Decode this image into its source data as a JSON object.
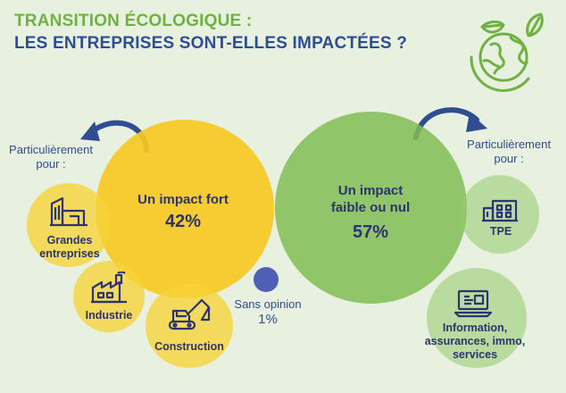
{
  "title": {
    "line1": "TRANSITION ÉCOLOGIQUE :",
    "line2": "LES ENTREPRISES SONT-ELLES IMPACTÉES ?"
  },
  "strong": {
    "label": "Un impact fort",
    "value": "42%",
    "intro": "Particulièrement pour :",
    "items": [
      "Grandes entreprises",
      "Industrie",
      "Construction"
    ]
  },
  "weak": {
    "label_line1": "Un impact",
    "label_line2": "faible ou nul",
    "value": "57%",
    "intro": "Particulièrement pour :",
    "items": [
      "TPE",
      "Information, assurances, immo, services"
    ]
  },
  "no_opinion": {
    "label": "Sans opinion",
    "value": "1%"
  },
  "colors": {
    "strong": "#f7c823",
    "weak": "#80bd55",
    "no_opinion": "#4f5fb6",
    "title_green": "#6fb243",
    "title_blue": "#2f4d93",
    "arrow": "#2f4d93"
  },
  "icons": [
    "globe-leaves-icon",
    "factory-buildings-icon",
    "industry-icon",
    "excavator-icon",
    "small-business-icon",
    "laptop-icon",
    "curved-arrow-left-icon",
    "curved-arrow-right-icon"
  ]
}
